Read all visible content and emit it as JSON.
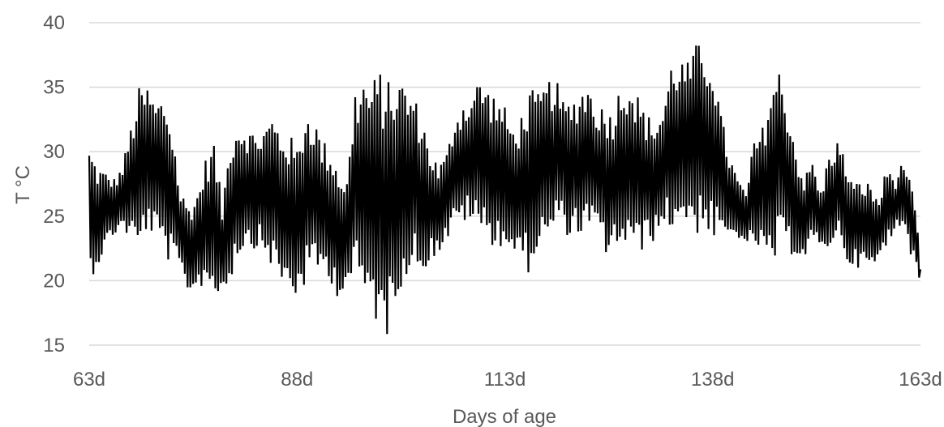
{
  "chart_data": {
    "type": "line",
    "title": "",
    "xlabel": "Days of age",
    "ylabel": "T °C",
    "xlim": [
      63,
      163
    ],
    "ylim": [
      15,
      40
    ],
    "x_ticks": [
      63,
      88,
      113,
      138,
      163
    ],
    "x_tick_labels": [
      "63d",
      "88d",
      "113d",
      "138d",
      "163d"
    ],
    "y_ticks": [
      15,
      20,
      25,
      30,
      35,
      40
    ],
    "y_tick_labels": [
      "15",
      "20",
      "25",
      "30",
      "35",
      "40"
    ],
    "grid": "horizontal",
    "legend": "none",
    "colors": {
      "series": "#000000",
      "grid": "#d9d9d9",
      "text": "#595959"
    },
    "series": [
      {
        "daily_min": [
          20.0,
          21.0,
          22.5,
          23.5,
          24.0,
          23.0,
          22.0,
          24.0,
          23.0,
          22.0,
          21.0,
          20.5,
          19.0,
          19.0,
          20.0,
          18.5,
          19.0,
          20.0,
          22.0,
          22.5,
          22.5,
          22.0,
          21.0,
          19.5,
          19.0,
          18.5,
          19.5,
          20.5,
          20.5,
          20.0,
          18.5,
          19.5,
          20.0,
          18.5,
          17.5,
          16.0,
          15.5,
          19.0,
          20.0,
          21.0,
          20.5,
          21.5,
          22.0,
          23.0,
          24.0,
          24.5,
          24.5,
          23.5,
          23.0,
          22.5,
          22.5,
          22.0,
          21.0,
          20.5,
          22.5,
          22.5,
          24.0,
          24.0,
          23.0,
          23.5,
          23.5,
          23.5,
          22.0,
          22.0,
          22.5,
          22.5,
          21.5,
          23.0,
          23.0,
          24.0,
          24.0,
          24.0,
          24.5,
          23.5,
          24.0,
          23.0,
          23.0,
          23.0,
          23.5,
          22.0,
          23.0,
          21.5,
          20.5,
          22.0,
          22.0,
          22.0,
          21.5,
          23.0,
          22.0,
          22.5,
          23.5,
          21.5,
          21.0,
          21.0,
          20.5,
          21.5,
          22.5,
          24.0,
          24.5,
          21.5,
          19.8
        ],
        "daily_max": [
          30.5,
          29.0,
          28.5,
          28.0,
          29.0,
          32.0,
          35.0,
          35.2,
          34.0,
          34.5,
          32.0,
          27.0,
          26.0,
          27.0,
          29.5,
          31.0,
          26.0,
          31.5,
          32.5,
          32.0,
          31.5,
          32.0,
          33.0,
          32.0,
          31.5,
          30.5,
          33.5,
          33.0,
          31.0,
          30.5,
          29.0,
          28.0,
          35.0,
          36.0,
          35.5,
          36.5,
          35.5,
          36.0,
          35.5,
          34.5,
          33.0,
          30.5,
          29.0,
          30.0,
          33.0,
          34.0,
          34.5,
          36.0,
          35.0,
          34.5,
          33.5,
          32.0,
          33.0,
          35.0,
          34.5,
          35.5,
          36.0,
          34.0,
          34.0,
          35.0,
          35.5,
          34.0,
          33.5,
          33.5,
          35.5,
          36.0,
          34.5,
          33.0,
          32.5,
          33.5,
          37.0,
          37.5,
          37.0,
          38.5,
          38.0,
          37.5,
          33.0,
          30.0,
          28.0,
          27.0,
          31.0,
          32.0,
          35.5,
          36.5,
          34.0,
          30.5,
          28.0,
          29.5,
          27.0,
          30.0,
          31.0,
          29.5,
          27.5,
          28.0,
          27.5,
          26.5,
          29.0,
          28.0,
          29.5,
          27.0,
          22.5
        ]
      }
    ]
  }
}
